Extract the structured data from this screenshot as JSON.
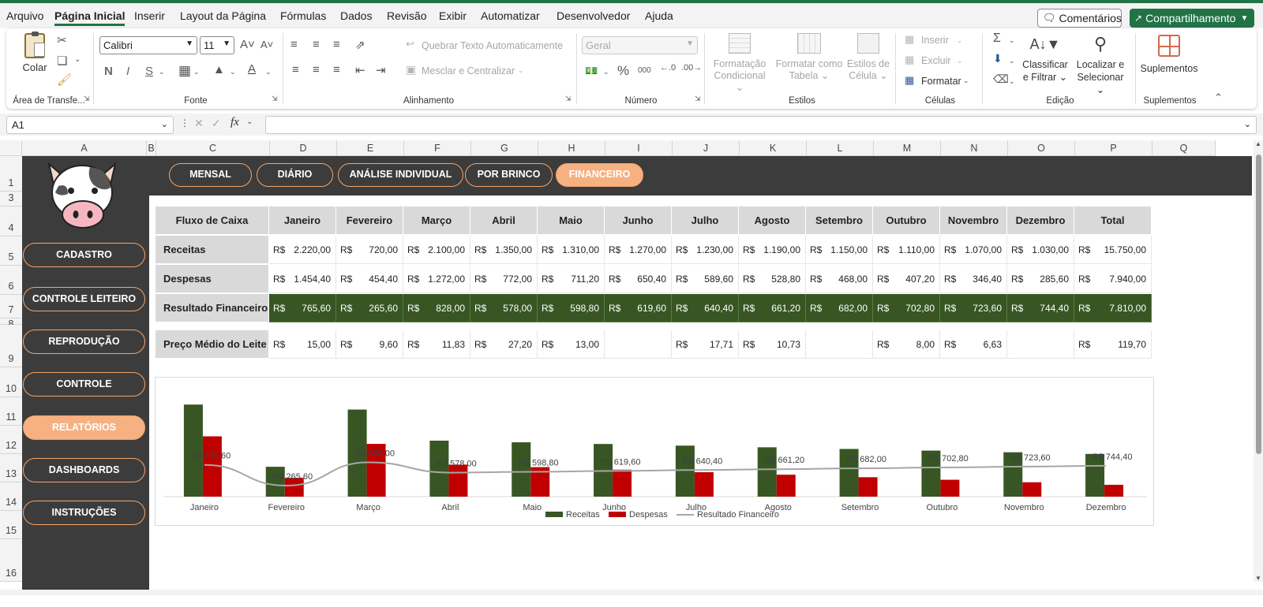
{
  "menu": [
    "Arquivo",
    "Página Inicial",
    "Inserir",
    "Layout da Página",
    "Fórmulas",
    "Dados",
    "Revisão",
    "Exibir",
    "Automatizar",
    "Desenvolvedor",
    "Ajuda"
  ],
  "menu_active": "Página Inicial",
  "actions": {
    "comments": "Comentários",
    "share": "Compartilhamento"
  },
  "ribbon": {
    "clipboard": {
      "paste": "Colar",
      "label": "Área de Transfe..."
    },
    "font": {
      "name": "Calibri",
      "size": "11",
      "bold": "N",
      "italic": "I",
      "underline": "S",
      "label": "Fonte"
    },
    "alignment": {
      "wrap": "Quebrar Texto Automaticamente",
      "merge": "Mesclar e Centralizar",
      "label": "Alinhamento"
    },
    "number": {
      "format": "Geral",
      "label": "Número"
    },
    "styles": {
      "cond_line1": "Formatação",
      "cond_line2": "Condicional",
      "table_line1": "Formatar como",
      "table_line2": "Tabela",
      "cell_line1": "Estilos de",
      "cell_line2": "Célula",
      "label": "Estilos"
    },
    "cells": {
      "insert": "Inserir",
      "delete": "Excluir",
      "format": "Formatar",
      "label": "Células"
    },
    "editing": {
      "sort_line1": "Classificar",
      "sort_line2": "e Filtrar",
      "find_line1": "Localizar e",
      "find_line2": "Selecionar",
      "label": "Edição"
    },
    "addins": {
      "button": "Suplementos",
      "label": "Suplementos"
    }
  },
  "namebox": "A1",
  "columns": [
    "A",
    "B",
    "C",
    "D",
    "E",
    "F",
    "G",
    "H",
    "I",
    "J",
    "K",
    "L",
    "M",
    "N",
    "O",
    "P",
    "Q"
  ],
  "rows": [
    "1",
    "3",
    "4",
    "5",
    "6",
    "7",
    "8",
    "9",
    "10",
    "11",
    "12",
    "13",
    "14",
    "15",
    "16"
  ],
  "nav_tabs": [
    "MENSAL",
    "DIÁRIO",
    "ANÁLISE INDIVIDUAL",
    "POR BRINCO",
    "FINANCEIRO"
  ],
  "nav_active": "FINANCEIRO",
  "sidebar": [
    "CADASTRO",
    "CONTROLE LEITEIRO",
    "REPRODUÇÃO",
    "CONTROLE",
    "RELATÓRIOS",
    "DASHBOARDS",
    "INSTRUÇÕES"
  ],
  "sidebar_active": "RELATÓRIOS",
  "currency": "R$",
  "table": {
    "corner": "Fluxo de Caixa",
    "months": [
      "Janeiro",
      "Fevereiro",
      "Março",
      "Abril",
      "Maio",
      "Junho",
      "Julho",
      "Agosto",
      "Setembro",
      "Outubro",
      "Novembro",
      "Dezembro",
      "Total"
    ],
    "rows": [
      {
        "label": "Receitas",
        "values": [
          "2.220,00",
          "720,00",
          "2.100,00",
          "1.350,00",
          "1.310,00",
          "1.270,00",
          "1.230,00",
          "1.190,00",
          "1.150,00",
          "1.110,00",
          "1.070,00",
          "1.030,00",
          "15.750,00"
        ]
      },
      {
        "label": "Despesas",
        "values": [
          "1.454,40",
          "454,40",
          "1.272,00",
          "772,00",
          "711,20",
          "650,40",
          "589,60",
          "528,80",
          "468,00",
          "407,20",
          "346,40",
          "285,60",
          "7.940,00"
        ]
      },
      {
        "label": "Resultado Financeiro",
        "values": [
          "765,60",
          "265,60",
          "828,00",
          "578,00",
          "598,80",
          "619,60",
          "640,40",
          "661,20",
          "682,00",
          "702,80",
          "723,60",
          "744,40",
          "7.810,00"
        ]
      }
    ],
    "price": {
      "label": "Preço Médio do Leite",
      "values": [
        "15,00",
        "9,60",
        "11,83",
        "27,20",
        "13,00",
        "",
        "17,71",
        "10,73",
        "",
        "8,00",
        "6,63",
        "",
        "119,70"
      ]
    }
  },
  "colors": {
    "green": "#375623",
    "red": "#c00000",
    "line": "#a6a6a6",
    "accent": "#f6b182",
    "dark": "#3c3c3c",
    "excel": "#217346"
  },
  "chart_data": {
    "type": "bar",
    "categories": [
      "Janeiro",
      "Fevereiro",
      "Março",
      "Abril",
      "Maio",
      "Junho",
      "Julho",
      "Agosto",
      "Setembro",
      "Outubro",
      "Novembro",
      "Dezembro"
    ],
    "series": [
      {
        "name": "Receitas",
        "type": "bar",
        "values": [
          2220,
          720,
          2100,
          1350,
          1310,
          1270,
          1230,
          1190,
          1150,
          1110,
          1070,
          1030
        ]
      },
      {
        "name": "Despesas",
        "type": "bar",
        "values": [
          1454.4,
          454.4,
          1272,
          772,
          711.2,
          650.4,
          589.6,
          528.8,
          468,
          407.2,
          346.4,
          285.6
        ]
      },
      {
        "name": "Resultado Financeiro",
        "type": "line",
        "values": [
          765.6,
          265.6,
          828,
          578,
          598.8,
          619.6,
          640.4,
          661.2,
          682,
          702.8,
          723.6,
          744.4
        ]
      }
    ],
    "data_labels": [
      "R$ 765,60",
      "R$ 265,60",
      "R$ 828,00",
      "R$ 578,00",
      "R$ 598,80",
      "R$ 619,60",
      "R$ 640,40",
      "R$ 661,20",
      "R$ 682,00",
      "R$ 702,80",
      "R$ 723,60",
      "R$ 744,40"
    ],
    "ylim": [
      0,
      2300
    ],
    "legend": "bottom",
    "grid": false
  }
}
